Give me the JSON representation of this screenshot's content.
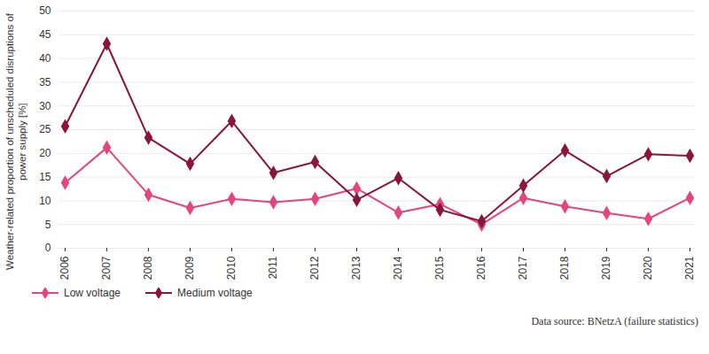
{
  "chart_data": {
    "type": "line",
    "y_label": "Weather-related proportion of unscheduled disruptions of power supply [%]",
    "caption": "Data source: BNetzA (failure statistics)",
    "categories": [
      "2006",
      "2007",
      "2008",
      "2009",
      "2010",
      "2011",
      "2012",
      "2013",
      "2014",
      "2015",
      "2016",
      "2017",
      "2018",
      "2019",
      "2020",
      "2021"
    ],
    "series": [
      {
        "name": "Low voltage",
        "color": "#e4467c",
        "marker": "diamond",
        "values": [
          13.8,
          21.2,
          11.3,
          8.5,
          10.4,
          9.7,
          10.4,
          12.6,
          7.5,
          9.3,
          5.0,
          10.6,
          8.8,
          7.4,
          6.2,
          10.6
        ]
      },
      {
        "name": "Medium voltage",
        "color": "#8a1538",
        "marker": "diamond",
        "values": [
          25.7,
          43.1,
          23.3,
          17.8,
          26.8,
          15.9,
          18.2,
          10.2,
          14.8,
          8.1,
          5.7,
          13.2,
          20.6,
          15.2,
          19.8,
          19.5
        ]
      }
    ],
    "ylim": [
      0,
      50
    ],
    "yticks": [
      0,
      5,
      10,
      15,
      20,
      25,
      30,
      35,
      40,
      45,
      50
    ],
    "grid": true,
    "legend": "bottom"
  }
}
